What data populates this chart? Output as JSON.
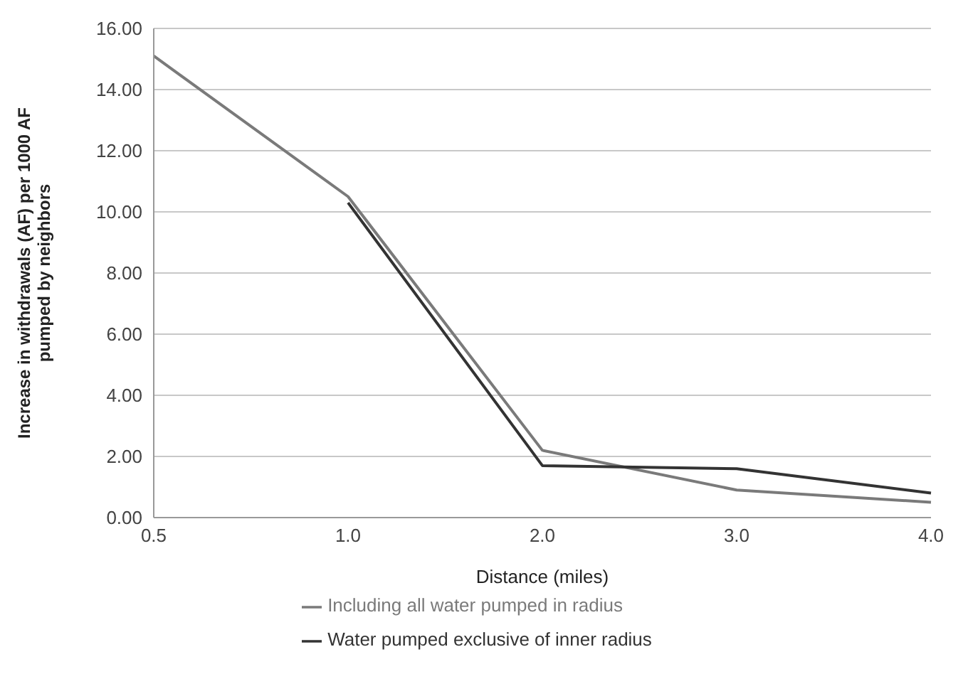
{
  "chart_data": {
    "type": "line",
    "xlabel": "Distance (miles)",
    "ylabel": "Increase in withdrawals (AF) per 1000 AF pumped by neighbors",
    "categories": [
      "0.5",
      "1.0",
      "2.0",
      "3.0",
      "4.0"
    ],
    "series": [
      {
        "name": "Including all water pumped in radius",
        "color": "#7a7a7a",
        "values": [
          15.1,
          10.5,
          2.2,
          0.9,
          0.5
        ]
      },
      {
        "name": "Water pumped exclusive of inner radius",
        "color": "#333333",
        "values": [
          null,
          10.3,
          1.7,
          1.6,
          0.8
        ]
      }
    ],
    "ylim": [
      0,
      16
    ],
    "yticks": [
      {
        "value": 0,
        "label": "0.00"
      },
      {
        "value": 2,
        "label": "2.00"
      },
      {
        "value": 4,
        "label": "4.00"
      },
      {
        "value": 6,
        "label": "6.00"
      },
      {
        "value": 8,
        "label": "8.00"
      },
      {
        "value": 10,
        "label": "10.00"
      },
      {
        "value": 12,
        "label": "12.00"
      },
      {
        "value": 14,
        "label": "14.00"
      },
      {
        "value": 16,
        "label": "16.00"
      }
    ],
    "grid": "y",
    "legend": "bottom",
    "marker": "none",
    "line_style": "solid"
  }
}
